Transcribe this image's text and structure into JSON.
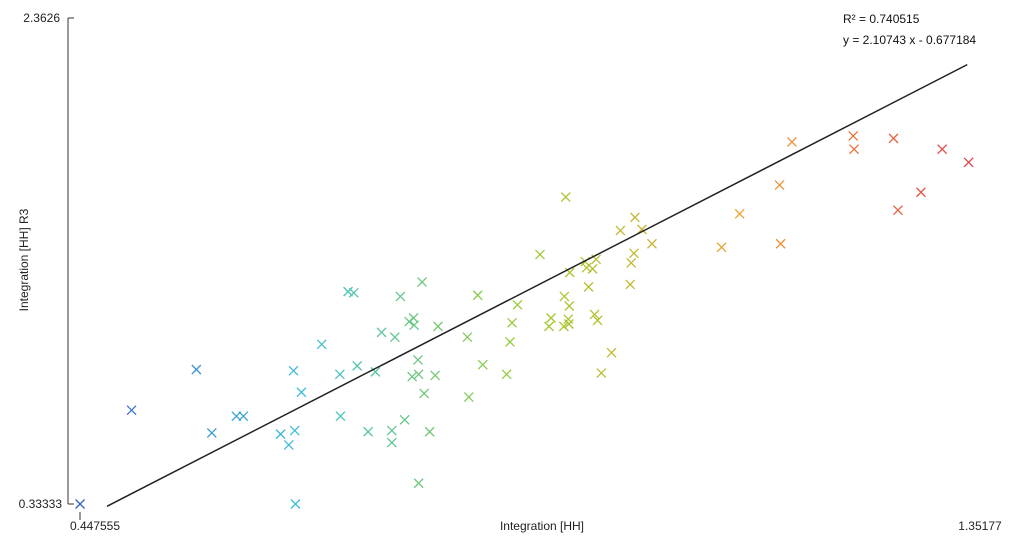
{
  "chart_data": {
    "type": "scatter",
    "title": "",
    "xlabel": "Integration [HH]",
    "ylabel": "Integration [HH] R3",
    "xlim": [
      0.447555,
      1.35177
    ],
    "ylim": [
      0.33333,
      2.3626
    ],
    "x_tick_labels": [
      "0.447555",
      "1.35177"
    ],
    "y_tick_labels": [
      "0.33333",
      "2.3626"
    ],
    "grid": false,
    "legend": "none",
    "trendline": {
      "r2_text": "R² = 0.740515",
      "equation_text": "y = 2.10743 x - 0.677184",
      "slope": 2.10743,
      "intercept": -0.677184,
      "x_start": 0.475,
      "x_end": 1.35
    },
    "color_scale": [
      "#3a5fcd",
      "#3cc0d8",
      "#9acd32",
      "#f0a030",
      "#e0404a"
    ],
    "points": [
      [
        0.4476,
        0.3333
      ],
      [
        0.5,
        0.725
      ],
      [
        0.5659,
        0.895
      ],
      [
        0.5816,
        0.63
      ],
      [
        0.6066,
        0.7
      ],
      [
        0.6137,
        0.7
      ],
      [
        0.6516,
        0.625
      ],
      [
        0.6599,
        0.58
      ],
      [
        0.6647,
        0.89
      ],
      [
        0.666,
        0.64
      ],
      [
        0.6667,
        0.3333
      ],
      [
        0.6728,
        0.8
      ],
      [
        0.6934,
        1.0
      ],
      [
        0.7119,
        0.875
      ],
      [
        0.7125,
        0.7
      ],
      [
        0.7202,
        1.22
      ],
      [
        0.726,
        1.215
      ],
      [
        0.7295,
        0.91
      ],
      [
        0.7406,
        0.635
      ],
      [
        0.748,
        0.885
      ],
      [
        0.7543,
        1.05
      ],
      [
        0.7647,
        0.64
      ],
      [
        0.7647,
        0.59
      ],
      [
        0.7678,
        1.03
      ],
      [
        0.7734,
        1.2
      ],
      [
        0.7778,
        0.685
      ],
      [
        0.7823,
        1.095
      ],
      [
        0.7854,
        0.865
      ],
      [
        0.7868,
        1.11
      ],
      [
        0.7874,
        1.08
      ],
      [
        0.7913,
        0.935
      ],
      [
        0.792,
        0.875
      ],
      [
        0.792,
        0.42
      ],
      [
        0.7955,
        1.26
      ],
      [
        0.7976,
        0.795
      ],
      [
        0.8032,
        0.635
      ],
      [
        0.8088,
        0.87
      ],
      [
        0.8117,
        1.075
      ],
      [
        0.8416,
        1.03
      ],
      [
        0.843,
        0.78
      ],
      [
        0.8521,
        1.205
      ],
      [
        0.8572,
        0.915
      ],
      [
        0.8815,
        0.875
      ],
      [
        0.8849,
        1.01
      ],
      [
        0.887,
        1.09
      ],
      [
        0.8925,
        1.165
      ],
      [
        0.9154,
        1.375
      ],
      [
        0.9246,
        1.075
      ],
      [
        0.9267,
        1.11
      ],
      [
        0.9397,
        1.075
      ],
      [
        0.9402,
        1.2
      ],
      [
        0.9416,
        1.615
      ],
      [
        0.9442,
        1.105
      ],
      [
        0.9448,
        1.085
      ],
      [
        0.9452,
        1.16
      ],
      [
        0.9457,
        1.3
      ],
      [
        0.9614,
        1.345
      ],
      [
        0.9628,
        1.32
      ],
      [
        0.9648,
        1.24
      ],
      [
        0.9689,
        1.315
      ],
      [
        0.9709,
        1.125
      ],
      [
        0.9725,
        1.355
      ],
      [
        0.974,
        1.1
      ],
      [
        0.9778,
        0.88
      ],
      [
        0.9882,
        0.965
      ],
      [
        0.9972,
        1.475
      ],
      [
        1.0072,
        1.25
      ],
      [
        1.0082,
        1.34
      ],
      [
        1.011,
        1.38
      ],
      [
        1.012,
        1.53
      ],
      [
        1.0191,
        1.48
      ],
      [
        1.0293,
        1.42
      ],
      [
        1.1001,
        1.405
      ],
      [
        1.1185,
        1.545
      ],
      [
        1.1591,
        1.665
      ],
      [
        1.1602,
        1.42
      ],
      [
        1.1717,
        1.845
      ],
      [
        1.234,
        1.87
      ],
      [
        1.2349,
        1.815
      ],
      [
        1.275,
        1.86
      ],
      [
        1.2795,
        1.56
      ],
      [
        1.3029,
        1.635
      ],
      [
        1.3245,
        1.815
      ],
      [
        1.3514,
        1.76
      ]
    ]
  }
}
